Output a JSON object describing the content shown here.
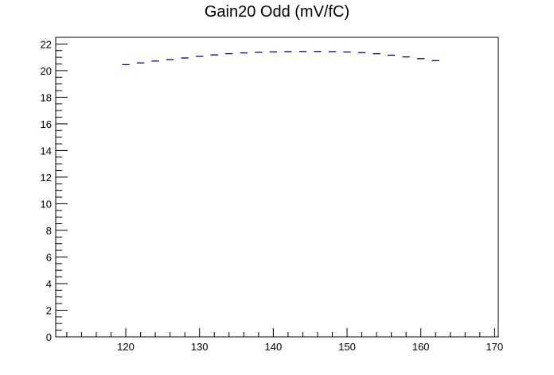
{
  "chart_data": {
    "type": "scatter",
    "title": "Gain20 Odd (mV/fC)",
    "xlabel": "",
    "ylabel": "",
    "xlim": [
      110.5,
      170.5
    ],
    "ylim": [
      0,
      22.5
    ],
    "x_ticks": [
      120,
      130,
      140,
      150,
      160,
      170
    ],
    "y_ticks": [
      0,
      2,
      4,
      6,
      8,
      10,
      12,
      14,
      16,
      18,
      20,
      22
    ],
    "grid": false,
    "legend": "none",
    "marker_color": "#00008b",
    "x_bin_halfwidth": 0.5,
    "series": [
      {
        "x": [
          120,
          122,
          124,
          126,
          128,
          130,
          132,
          134,
          136,
          138,
          140,
          142,
          144,
          146,
          148,
          150,
          152,
          154,
          156,
          158,
          160,
          162
        ],
        "values": [
          20.45,
          20.58,
          20.72,
          20.83,
          20.95,
          21.07,
          21.18,
          21.27,
          21.33,
          21.38,
          21.41,
          21.43,
          21.44,
          21.44,
          21.43,
          21.4,
          21.35,
          21.27,
          21.16,
          21.03,
          20.9,
          20.75
        ]
      }
    ]
  }
}
